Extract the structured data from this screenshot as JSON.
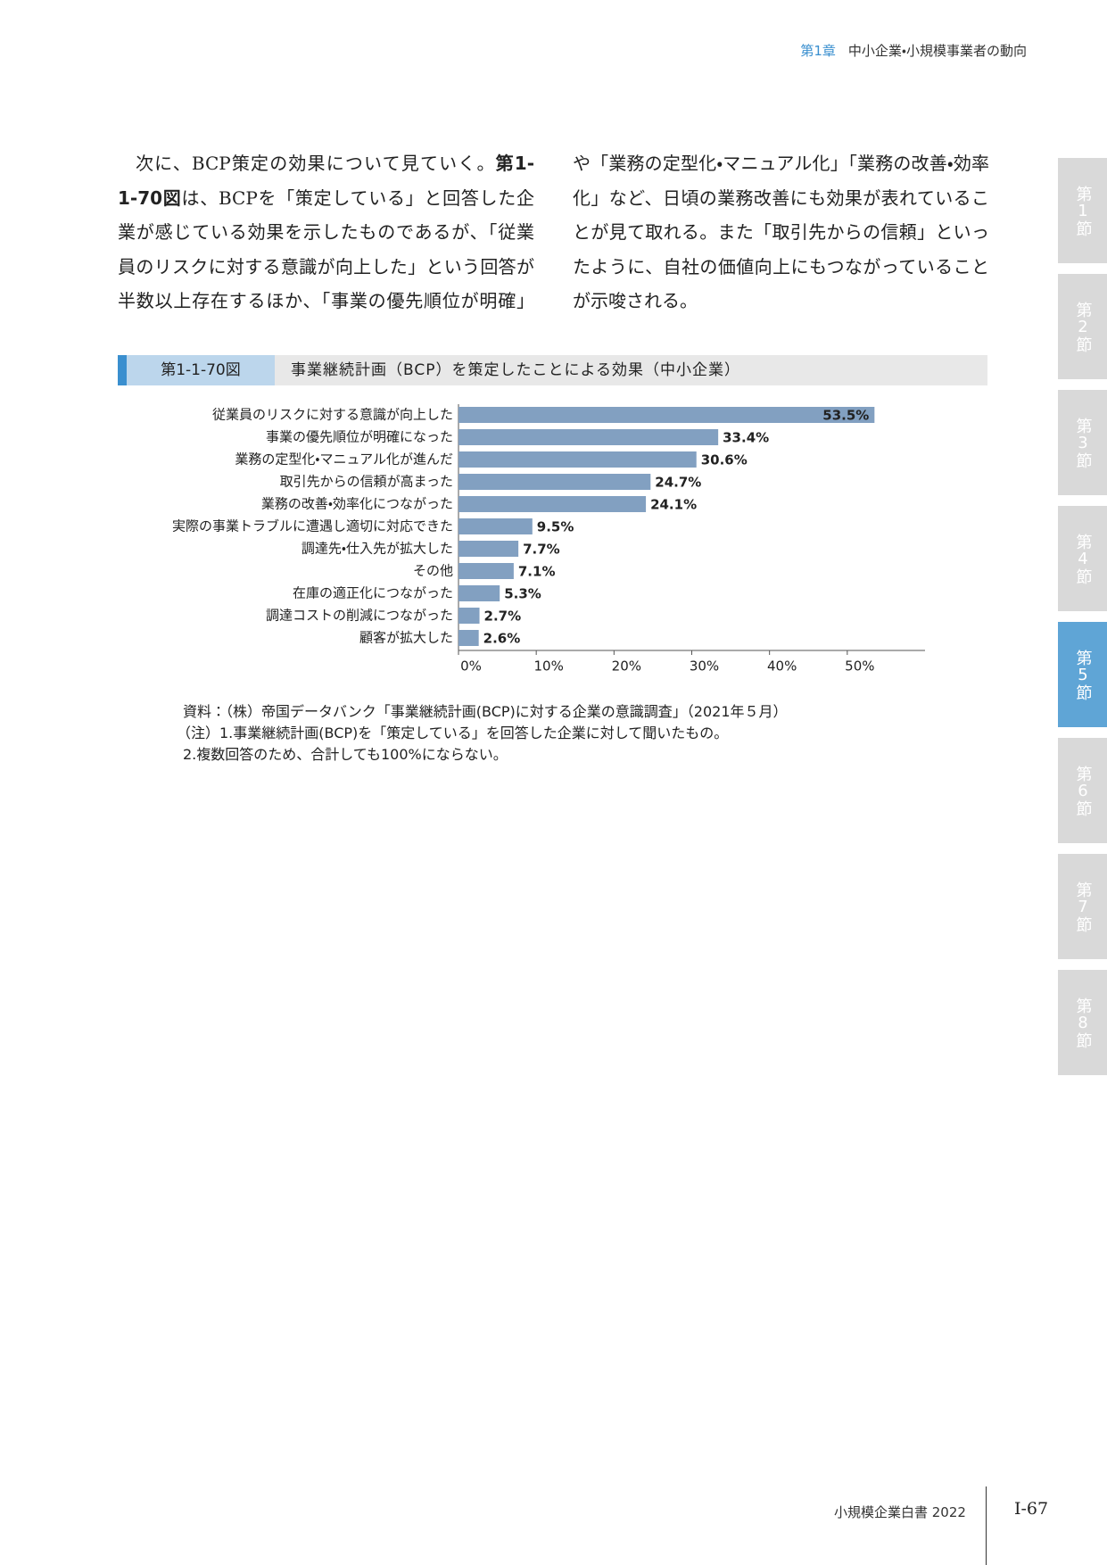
{
  "header": {
    "chapter": "第1章",
    "title": "中小企業・小規模事業者の動向"
  },
  "body": {
    "text_before": "次に、BCP策定の効果について見ていく。",
    "figure_ref": "第1-1-70図",
    "text_after": "は、BCPを「策定している」と回答した企業が感じている効果を示したものであるが、「従業員のリスクに対する意識が向上した」という回答が半数以上存在するほか、「事業の優先順位が明確」や「業務の定型化・マニュアル化」「業務の改善・効率化」など、日頃の業務改善にも効果が表れていることが見て取れる。また「取引先からの信頼」といったように、自社の価値向上にもつながっていることが示唆される。"
  },
  "figure": {
    "number": "第1-1-70図",
    "title": "事業継続計画（BCP）を策定したことによる効果（中小企業）",
    "source": "資料：（株）帝国データバンク「事業継続計画(BCP)に対する企業の意識調査」（2021年５月）",
    "notes": [
      "（注）1.事業継続計画(BCP)を「策定している」を回答した企業に対して聞いたもの。",
      "2.複数回答のため、合計しても100%にならない。"
    ]
  },
  "chart_data": {
    "type": "hbar",
    "categories": [
      "従業員のリスクに対する意識が向上した",
      "事業の優先順位が明確になった",
      "業務の定型化・マニュアル化が進んだ",
      "取引先からの信頼が高まった",
      "業務の改善・効率化につながった",
      "実際の事業トラブルに遭遇し適切に対応できた",
      "調達先・仕入先が拡大した",
      "その他",
      "在庫の適正化につながった",
      "調達コストの削減につながった",
      "顧客が拡大した"
    ],
    "values": [
      53.5,
      33.4,
      30.6,
      24.7,
      24.1,
      9.5,
      7.7,
      7.1,
      5.3,
      2.7,
      2.6
    ],
    "value_labels": [
      "53.5%",
      "33.4%",
      "30.6%",
      "24.7%",
      "24.1%",
      "9.5%",
      "7.7%",
      "7.1%",
      "5.3%",
      "2.7%",
      "2.6%"
    ],
    "color": "#82a0c1",
    "xlim": [
      0,
      60
    ],
    "xticks": [
      {
        "value": 0,
        "label": "0%"
      },
      {
        "value": 10,
        "label": "10%"
      },
      {
        "value": 20,
        "label": "20%"
      },
      {
        "value": 30,
        "label": "30%"
      },
      {
        "value": 40,
        "label": "40%"
      },
      {
        "value": 50,
        "label": "50%"
      }
    ]
  },
  "tabs": [
    {
      "label": "第1節",
      "active": false
    },
    {
      "label": "第2節",
      "active": false
    },
    {
      "label": "第3節",
      "active": false
    },
    {
      "label": "第4節",
      "active": false
    },
    {
      "label": "第5節",
      "active": true
    },
    {
      "label": "第6節",
      "active": false
    },
    {
      "label": "第7節",
      "active": false
    },
    {
      "label": "第8節",
      "active": false
    }
  ],
  "footer": {
    "book": "小規模企業白書 2022",
    "page": "Ⅰ-67"
  }
}
